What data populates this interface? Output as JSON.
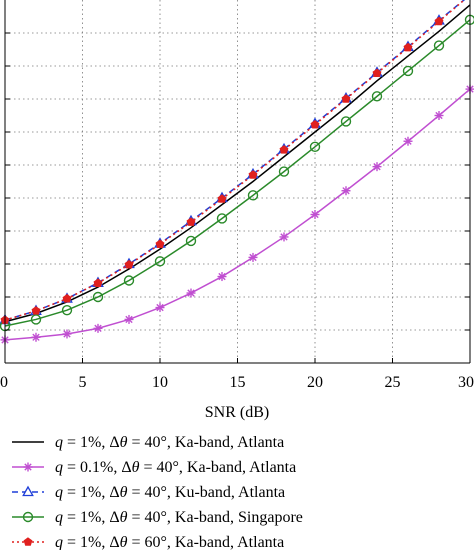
{
  "chart_data": {
    "type": "line",
    "xlabel": "SNR (dB)",
    "ylabel": "",
    "xlim": [
      0,
      30
    ],
    "ylim": [
      0,
      11
    ],
    "x_ticks": [
      0,
      5,
      10,
      15,
      20,
      25,
      30
    ],
    "x_tick_labels": [
      "0",
      "5",
      "10",
      "15",
      "20",
      "25",
      "30"
    ],
    "grid": true,
    "legend_position": "bottom",
    "series": [
      {
        "name": "q = 1%, Δθ = 40°, Ka-band, Atlanta",
        "legend_parts": [
          "q",
          " = 1%, Δ",
          "θ",
          " = 40°, Ka-band, Atlanta"
        ],
        "color": "#000000",
        "marker": "none",
        "dash": "solid",
        "x": [
          0,
          2,
          4,
          6,
          8,
          10,
          12,
          14,
          16,
          18,
          20,
          22,
          24,
          26,
          28,
          30
        ],
        "y": [
          1.25,
          1.5,
          1.85,
          2.3,
          2.85,
          3.45,
          4.1,
          4.8,
          5.5,
          6.25,
          7.0,
          7.75,
          8.55,
          9.3,
          10.05,
          10.85
        ]
      },
      {
        "name": "q = 0.1%, Δθ = 40°, Ka-band, Atlanta",
        "legend_parts": [
          "q",
          " = 0.1%, Δ",
          "θ",
          " = 40°, Ka-band, Atlanta"
        ],
        "color": "#c04fd1",
        "marker": "star",
        "dash": "solid",
        "x": [
          0,
          2,
          4,
          6,
          8,
          10,
          12,
          14,
          16,
          18,
          20,
          22,
          24,
          26,
          28,
          30
        ],
        "y": [
          0.7,
          0.78,
          0.88,
          1.05,
          1.32,
          1.68,
          2.12,
          2.62,
          3.2,
          3.82,
          4.5,
          5.22,
          5.95,
          6.72,
          7.5,
          8.3
        ]
      },
      {
        "name": "q = 1%, Δθ = 40°, Ku-band, Atlanta",
        "legend_parts": [
          "q",
          " = 1%, Δ",
          "θ",
          " = 40°, Ku-band, Atlanta"
        ],
        "color": "#1f3ed8",
        "marker": "triangle",
        "dash": "dashed",
        "x": [
          0,
          2,
          4,
          6,
          8,
          10,
          12,
          14,
          16,
          18,
          20,
          22,
          24,
          26,
          28,
          30
        ],
        "y": [
          1.3,
          1.58,
          1.95,
          2.43,
          3.0,
          3.62,
          4.3,
          5.0,
          5.72,
          6.48,
          7.25,
          8.02,
          8.8,
          9.58,
          10.38,
          11.15
        ]
      },
      {
        "name": "q = 1%, Δθ = 40°, Ka-band, Singapore",
        "legend_parts": [
          "q",
          " = 1%, Δ",
          "θ",
          " = 40°, Ka-band, Singapore"
        ],
        "color": "#2a8a2a",
        "marker": "circle",
        "dash": "solid",
        "x": [
          0,
          2,
          4,
          6,
          8,
          10,
          12,
          14,
          16,
          18,
          20,
          22,
          24,
          26,
          28,
          30
        ],
        "y": [
          1.12,
          1.32,
          1.6,
          2.0,
          2.5,
          3.08,
          3.7,
          4.38,
          5.08,
          5.8,
          6.55,
          7.32,
          8.08,
          8.85,
          9.62,
          10.4
        ]
      },
      {
        "name": "q = 1%, Δθ = 60°, Ka-band, Atlanta",
        "legend_parts": [
          "q",
          " = 1%, Δ",
          "θ",
          " = 60°, Ka-band, Atlanta"
        ],
        "color": "#e0201e",
        "marker": "pentagon",
        "dash": "dotted",
        "x": [
          0,
          2,
          4,
          6,
          8,
          10,
          12,
          14,
          16,
          18,
          20,
          22,
          24,
          26,
          28,
          30
        ],
        "y": [
          1.3,
          1.58,
          1.95,
          2.42,
          2.98,
          3.6,
          4.27,
          4.97,
          5.7,
          6.46,
          7.22,
          8.0,
          8.78,
          9.56,
          10.35,
          11.15
        ]
      }
    ]
  }
}
